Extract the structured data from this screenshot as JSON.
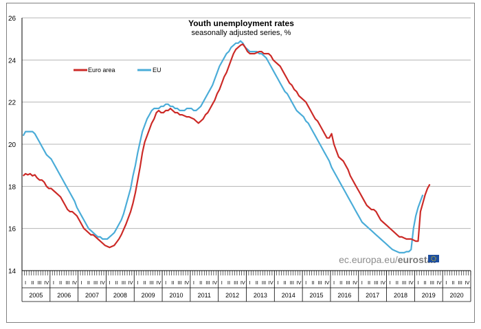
{
  "chart_data": {
    "type": "line",
    "title": "Youth unemployment rates",
    "subtitle": "seasonally adjusted series, %",
    "ylim": [
      14,
      26
    ],
    "yticks": [
      14,
      16,
      18,
      20,
      22,
      24,
      26
    ],
    "years": [
      "2005",
      "2006",
      "2007",
      "2008",
      "2009",
      "2010",
      "2011",
      "2012",
      "2013",
      "2014",
      "2015",
      "2016",
      "2017",
      "2018",
      "2019",
      "2020"
    ],
    "quarter_labels": [
      "I",
      "II",
      "III",
      "IV"
    ],
    "grid": "horizontal",
    "legend_position": "top-left",
    "x_start": "2005-01",
    "series": [
      {
        "name": "Euro area",
        "color": "#cc2a27",
        "values": [
          18.5,
          18.6,
          18.55,
          18.6,
          18.5,
          18.55,
          18.4,
          18.3,
          18.3,
          18.2,
          18.0,
          17.9,
          17.9,
          17.8,
          17.7,
          17.6,
          17.5,
          17.3,
          17.1,
          16.9,
          16.8,
          16.8,
          16.7,
          16.6,
          16.4,
          16.2,
          16.0,
          15.9,
          15.8,
          15.7,
          15.7,
          15.6,
          15.5,
          15.4,
          15.3,
          15.2,
          15.15,
          15.1,
          15.15,
          15.2,
          15.35,
          15.5,
          15.7,
          15.95,
          16.2,
          16.5,
          16.8,
          17.2,
          17.7,
          18.3,
          18.9,
          19.6,
          20.1,
          20.4,
          20.7,
          21.0,
          21.2,
          21.5,
          21.6,
          21.5,
          21.5,
          21.6,
          21.6,
          21.7,
          21.6,
          21.5,
          21.5,
          21.4,
          21.4,
          21.35,
          21.3,
          21.3,
          21.25,
          21.2,
          21.1,
          21.0,
          21.1,
          21.2,
          21.4,
          21.5,
          21.7,
          21.9,
          22.1,
          22.4,
          22.6,
          22.9,
          23.2,
          23.4,
          23.7,
          24.0,
          24.3,
          24.5,
          24.6,
          24.7,
          24.75,
          24.6,
          24.4,
          24.3,
          24.3,
          24.3,
          24.35,
          24.4,
          24.4,
          24.3,
          24.3,
          24.3,
          24.2,
          24.0,
          23.9,
          23.8,
          23.7,
          23.5,
          23.3,
          23.1,
          22.9,
          22.8,
          22.6,
          22.5,
          22.3,
          22.2,
          22.1,
          22.0,
          21.8,
          21.6,
          21.4,
          21.2,
          21.1,
          20.9,
          20.7,
          20.5,
          20.3,
          20.3,
          20.5,
          20.0,
          19.7,
          19.4,
          19.3,
          19.2,
          19.0,
          18.8,
          18.5,
          18.3,
          18.1,
          17.9,
          17.7,
          17.5,
          17.3,
          17.1,
          17.0,
          16.9,
          16.9,
          16.8,
          16.6,
          16.4,
          16.3,
          16.2,
          16.1,
          16.0,
          15.9,
          15.8,
          15.7,
          15.6,
          15.6,
          15.55,
          15.5,
          15.5,
          15.5,
          15.45,
          15.4,
          15.4,
          16.8,
          17.2,
          17.6,
          17.9,
          18.1
        ]
      },
      {
        "name": "EU",
        "color": "#4aacd8",
        "values": [
          20.4,
          20.6,
          20.6,
          20.6,
          20.6,
          20.5,
          20.3,
          20.1,
          19.9,
          19.7,
          19.5,
          19.4,
          19.3,
          19.1,
          18.9,
          18.7,
          18.5,
          18.3,
          18.1,
          17.9,
          17.7,
          17.5,
          17.3,
          17.0,
          16.8,
          16.6,
          16.4,
          16.2,
          16.0,
          15.9,
          15.8,
          15.7,
          15.6,
          15.6,
          15.5,
          15.5,
          15.5,
          15.6,
          15.7,
          15.8,
          16.0,
          16.2,
          16.4,
          16.7,
          17.1,
          17.5,
          17.9,
          18.5,
          19.0,
          19.6,
          20.1,
          20.6,
          20.9,
          21.2,
          21.4,
          21.6,
          21.7,
          21.7,
          21.7,
          21.8,
          21.8,
          21.9,
          21.9,
          21.8,
          21.8,
          21.7,
          21.7,
          21.6,
          21.6,
          21.6,
          21.7,
          21.7,
          21.7,
          21.6,
          21.6,
          21.7,
          21.8,
          22.0,
          22.2,
          22.4,
          22.6,
          22.8,
          23.1,
          23.4,
          23.7,
          23.9,
          24.1,
          24.3,
          24.4,
          24.6,
          24.7,
          24.8,
          24.8,
          24.9,
          24.8,
          24.6,
          24.5,
          24.4,
          24.4,
          24.4,
          24.4,
          24.3,
          24.3,
          24.2,
          24.1,
          23.9,
          23.7,
          23.5,
          23.3,
          23.1,
          22.9,
          22.7,
          22.5,
          22.4,
          22.2,
          22.0,
          21.8,
          21.6,
          21.5,
          21.4,
          21.3,
          21.1,
          21.0,
          20.8,
          20.6,
          20.4,
          20.2,
          20.0,
          19.8,
          19.6,
          19.4,
          19.2,
          18.9,
          18.7,
          18.5,
          18.3,
          18.1,
          17.9,
          17.7,
          17.5,
          17.3,
          17.1,
          16.9,
          16.7,
          16.5,
          16.3,
          16.2,
          16.1,
          16.0,
          15.9,
          15.8,
          15.7,
          15.6,
          15.5,
          15.4,
          15.3,
          15.2,
          15.1,
          15.0,
          14.95,
          14.9,
          14.85,
          14.85,
          14.85,
          14.9,
          14.9,
          15.0,
          16.0,
          16.6,
          17.0,
          17.3,
          17.6
        ]
      }
    ]
  },
  "source": {
    "text": "ec.europa.eu/",
    "brand": "eurostat"
  },
  "footer": {
    "flag_icon": "eu-flag-icon"
  }
}
